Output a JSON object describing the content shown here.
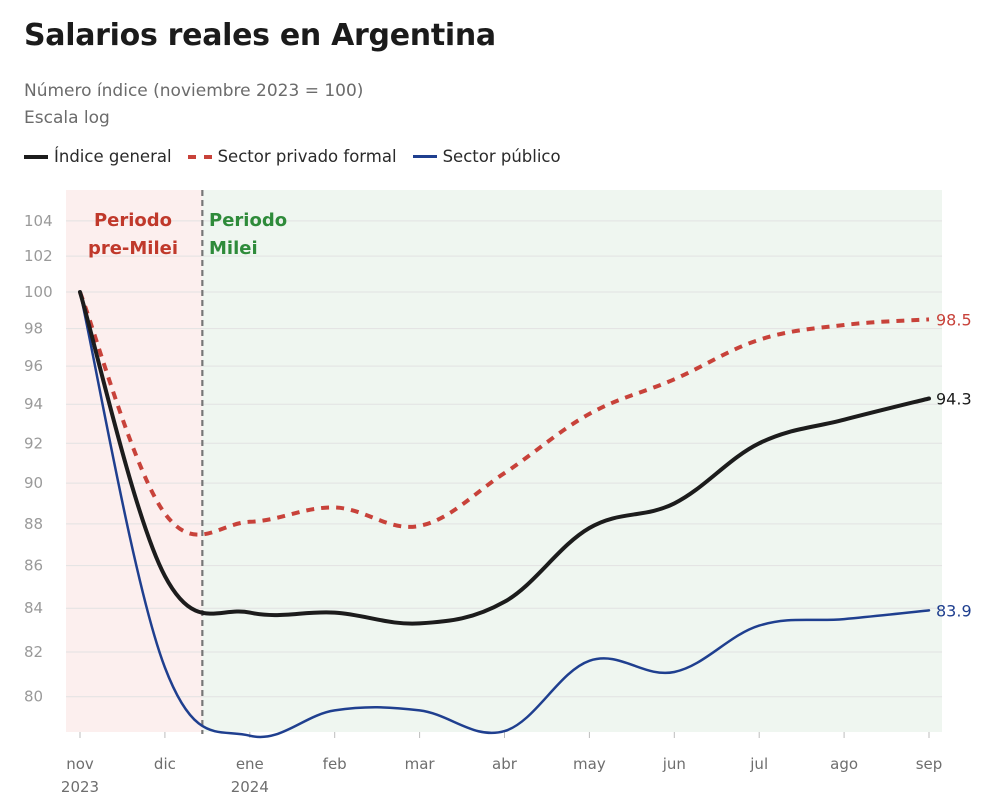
{
  "title": "Salarios reales en Argentina",
  "subtitle": "Número índice (noviembre 2023 = 100)",
  "subtitle2": "Escala log",
  "colors": {
    "general": "#1c1c1c",
    "privado": "#c8423a",
    "publico": "#1f3f8f",
    "pre_bg": "#fcefee",
    "milei_bg": "#eff6f0",
    "pre_text": "#c0392b",
    "milei_text": "#2e8b3a"
  },
  "chart_data": {
    "type": "line",
    "title": "Salarios reales en Argentina",
    "ylabel": "Número índice (noviembre 2023 = 100)",
    "y_scale": "log",
    "ylim": [
      78.2,
      104.8
    ],
    "y_ticks": [
      80,
      82,
      84,
      86,
      88,
      90,
      92,
      94,
      96,
      98,
      100,
      102,
      104
    ],
    "grid": true,
    "legend_placement": "top-left",
    "x": [
      "2023-11",
      "2023-12",
      "2024-01",
      "2024-02",
      "2024-03",
      "2024-04",
      "2024-05",
      "2024-06",
      "2024-07",
      "2024-08",
      "2024-09"
    ],
    "x_labels": [
      {
        "label": "nov",
        "year": "2023"
      },
      {
        "label": "dic",
        "year": ""
      },
      {
        "label": "ene",
        "year": "2024"
      },
      {
        "label": "feb",
        "year": ""
      },
      {
        "label": "mar",
        "year": ""
      },
      {
        "label": "abr",
        "year": ""
      },
      {
        "label": "may",
        "year": ""
      },
      {
        "label": "jun",
        "year": ""
      },
      {
        "label": "jul",
        "year": ""
      },
      {
        "label": "ago",
        "year": ""
      },
      {
        "label": "sep",
        "year": ""
      }
    ],
    "series": [
      {
        "name": "Índice general",
        "key": "general",
        "style": "solid",
        "end_label": "94.3",
        "values": [
          100,
          85.5,
          83.8,
          83.8,
          83.3,
          84.3,
          87.8,
          89.0,
          92.0,
          93.2,
          94.3
        ]
      },
      {
        "name": "Sector privado formal",
        "key": "privado",
        "style": "dashed",
        "end_label": "98.5",
        "values": [
          100,
          88.5,
          88.1,
          88.8,
          87.9,
          90.5,
          93.5,
          95.3,
          97.4,
          98.2,
          98.5
        ]
      },
      {
        "name": "Sector público",
        "key": "publico",
        "style": "solid",
        "end_label": "83.9",
        "values": [
          100,
          81.3,
          78.3,
          79.4,
          79.4,
          78.5,
          81.6,
          81.1,
          83.2,
          83.5,
          83.9
        ]
      }
    ],
    "annotations": {
      "divider_between": [
        "2023-12",
        "2024-01"
      ],
      "pre_label": [
        "Periodo",
        "pre-Milei"
      ],
      "milei_label": [
        "Periodo",
        "Milei"
      ]
    }
  }
}
